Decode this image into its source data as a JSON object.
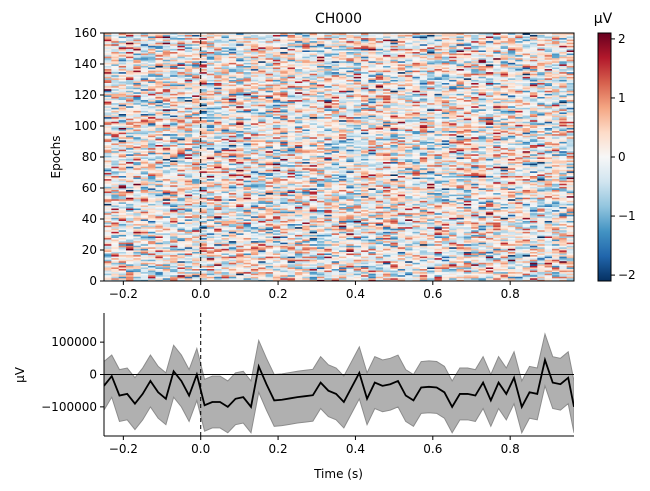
{
  "chart_data": [
    {
      "type": "heatmap",
      "title": "CH000",
      "ylabel": "Epochs",
      "xlim": [
        -0.25,
        0.965
      ],
      "ylim": [
        0,
        160
      ],
      "xticks": [
        -0.2,
        0.0,
        0.2,
        0.4,
        0.6,
        0.8
      ],
      "xtick_labels": [
        "−0.2",
        "0.0",
        "0.2",
        "0.4",
        "0.6",
        "0.8"
      ],
      "yticks": [
        0,
        20,
        40,
        60,
        80,
        100,
        120,
        140,
        160
      ],
      "ytick_labels": [
        "0",
        "20",
        "40",
        "60",
        "80",
        "100",
        "120",
        "140",
        "160"
      ],
      "n_epochs": 160,
      "n_times": 64,
      "colormap": "RdBu_r",
      "vmin": -2.1,
      "vmax": 2.1,
      "event_line_x": 0.0,
      "colorbar": {
        "label": "μV",
        "ticks": [
          -2,
          -1,
          0,
          1,
          2
        ],
        "tick_labels": [
          "−2",
          "−1",
          "0",
          "1",
          "2"
        ],
        "colors": [
          "#053061",
          "#2166ac",
          "#4393c3",
          "#92c5de",
          "#d1e5f0",
          "#f7f7f7",
          "#fddbc7",
          "#f4a582",
          "#d6604d",
          "#b2182b",
          "#67001f"
        ]
      },
      "grid": false
    },
    {
      "type": "line",
      "xlabel": "Time (s)",
      "ylabel": "μV",
      "xlim": [
        -0.25,
        0.965
      ],
      "ylim": [
        -190000,
        190000
      ],
      "xticks": [
        -0.2,
        0.0,
        0.2,
        0.4,
        0.6,
        0.8
      ],
      "xtick_labels": [
        "−0.2",
        "0.0",
        "0.2",
        "0.4",
        "0.6",
        "0.8"
      ],
      "yticks": [
        -100000,
        0,
        100000
      ],
      "ytick_labels": [
        "−100000",
        "0",
        "100000"
      ],
      "event_line_x": 0.0,
      "zero_line_y": 0,
      "grid": false,
      "colors": {
        "line": "#000000",
        "band": "#b0b0b0",
        "band_edge": "#8c8c8c"
      },
      "series": [
        {
          "x": [
            -0.25,
            -0.23,
            -0.21,
            -0.19,
            -0.17,
            -0.15,
            -0.13,
            -0.11,
            -0.09,
            -0.07,
            -0.05,
            -0.03,
            -0.01,
            0.01,
            0.03,
            0.05,
            0.07,
            0.09,
            0.11,
            0.13,
            0.15,
            0.17,
            0.19,
            0.21,
            0.23,
            0.25,
            0.27,
            0.29,
            0.31,
            0.33,
            0.35,
            0.37,
            0.39,
            0.41,
            0.43,
            0.45,
            0.47,
            0.49,
            0.51,
            0.53,
            0.55,
            0.57,
            0.59,
            0.61,
            0.63,
            0.65,
            0.67,
            0.69,
            0.71,
            0.73,
            0.75,
            0.77,
            0.79,
            0.81,
            0.83,
            0.85,
            0.87,
            0.89,
            0.91,
            0.93,
            0.95,
            0.965
          ],
          "y": [
            -35000,
            -5000,
            -65000,
            -60000,
            -90000,
            -60000,
            -20000,
            -55000,
            -75000,
            10000,
            -20000,
            -65000,
            0,
            -95000,
            -85000,
            -85000,
            -100000,
            -75000,
            -70000,
            -100000,
            25000,
            -30000,
            -80000,
            -78000,
            -74000,
            -70000,
            -67000,
            -64000,
            -25000,
            -50000,
            -60000,
            -85000,
            -40000,
            5000,
            -75000,
            -25000,
            -35000,
            -30000,
            -20000,
            -65000,
            -80000,
            -40000,
            -38000,
            -40000,
            -55000,
            -100000,
            -60000,
            -60000,
            -65000,
            -25000,
            -80000,
            -25000,
            -60000,
            -10000,
            -100000,
            -55000,
            -60000,
            45000,
            -25000,
            -30000,
            -10000,
            -100000
          ],
          "ci_high": [
            40000,
            60000,
            15000,
            20000,
            -10000,
            20000,
            60000,
            25000,
            5000,
            90000,
            60000,
            15000,
            80000,
            -15000,
            -5000,
            -5000,
            -20000,
            5000,
            10000,
            -20000,
            105000,
            50000,
            0,
            2000,
            6000,
            10000,
            13000,
            16000,
            55000,
            30000,
            20000,
            -5000,
            40000,
            85000,
            5000,
            55000,
            45000,
            50000,
            60000,
            15000,
            0,
            40000,
            42000,
            40000,
            25000,
            -20000,
            20000,
            20000,
            15000,
            55000,
            0,
            55000,
            20000,
            70000,
            -20000,
            25000,
            20000,
            125000,
            55000,
            50000,
            70000,
            -20000
          ],
          "ci_low": [
            -110000,
            -70000,
            -145000,
            -140000,
            -170000,
            -140000,
            -100000,
            -135000,
            -155000,
            -70000,
            -100000,
            -145000,
            -80000,
            -175000,
            -165000,
            -165000,
            -180000,
            -155000,
            -150000,
            -180000,
            -55000,
            -110000,
            -160000,
            -158000,
            -154000,
            -150000,
            -147000,
            -144000,
            -105000,
            -130000,
            -140000,
            -165000,
            -120000,
            -75000,
            -155000,
            -105000,
            -115000,
            -110000,
            -100000,
            -145000,
            -160000,
            -120000,
            -118000,
            -120000,
            -135000,
            -180000,
            -140000,
            -140000,
            -145000,
            -105000,
            -160000,
            -105000,
            -140000,
            -90000,
            -180000,
            -135000,
            -140000,
            -35000,
            -105000,
            -110000,
            -90000,
            -180000
          ]
        }
      ]
    }
  ]
}
